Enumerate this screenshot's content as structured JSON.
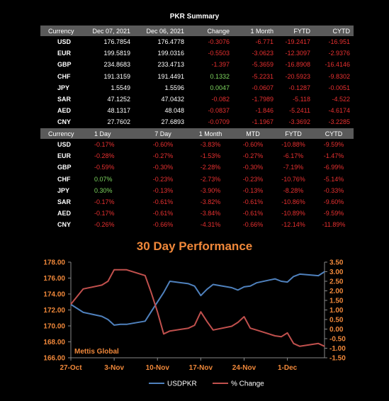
{
  "summary_title": "PKR Summary",
  "table1": {
    "headers": [
      "Currency",
      "Dec 07, 2021",
      "Dec 06, 2021",
      "Change",
      "1 Month",
      "FYTD",
      "CYTD"
    ],
    "rows": [
      [
        "USD",
        "176.7854",
        "176.4778",
        "-0.3076",
        "-6.771",
        "-19.2417",
        "-16.951"
      ],
      [
        "EUR",
        "199.5819",
        "199.0316",
        "-0.5503",
        "-3.0623",
        "-12.3097",
        "-2.9376"
      ],
      [
        "GBP",
        "234.8683",
        "233.4713",
        "-1.397",
        "-5.3659",
        "-16.8908",
        "-16.4146"
      ],
      [
        "CHF",
        "191.3159",
        "191.4491",
        "0.1332",
        "-5.2231",
        "-20.5923",
        "-9.8302"
      ],
      [
        "JPY",
        "1.5549",
        "1.5596",
        "0.0047",
        "-0.0607",
        "-0.1287",
        "-0.0051"
      ],
      [
        "SAR",
        "47.1252",
        "47.0432",
        "-0.082",
        "-1.7989",
        "-5.118",
        "-4.522"
      ],
      [
        "AED",
        "48.1317",
        "48.048",
        "-0.0837",
        "-1.846",
        "-5.2411",
        "-4.6174"
      ],
      [
        "CNY",
        "27.7602",
        "27.6893",
        "-0.0709",
        "-1.1967",
        "-3.3692",
        "-3.2285"
      ]
    ]
  },
  "table2": {
    "headers": [
      "Currency",
      "1 Day",
      "7 Day",
      "1 Month",
      "MTD",
      "FYTD",
      "CYTD"
    ],
    "rows": [
      [
        "USD",
        "-0.17%",
        "-0.60%",
        "-3.83%",
        "-0.60%",
        "-10.88%",
        "-9.59%"
      ],
      [
        "EUR",
        "-0.28%",
        "-0.27%",
        "-1.53%",
        "-0.27%",
        "-6.17%",
        "-1.47%"
      ],
      [
        "GBP",
        "-0.59%",
        "-0.30%",
        "-2.28%",
        "-0.30%",
        "-7.19%",
        "-6.99%"
      ],
      [
        "CHF",
        "0.07%",
        "-0.23%",
        "-2.73%",
        "-0.23%",
        "-10.76%",
        "-5.14%"
      ],
      [
        "JPY",
        "0.30%",
        "-0.13%",
        "-3.90%",
        "-0.13%",
        "-8.28%",
        "-0.33%"
      ],
      [
        "SAR",
        "-0.17%",
        "-0.61%",
        "-3.82%",
        "-0.61%",
        "-10.86%",
        "-9.60%"
      ],
      [
        "AED",
        "-0.17%",
        "-0.61%",
        "-3.84%",
        "-0.61%",
        "-10.89%",
        "-9.59%"
      ],
      [
        "CNY",
        "-0.26%",
        "-0.66%",
        "-4.31%",
        "-0.66%",
        "-12.14%",
        "-11.89%"
      ]
    ]
  },
  "colors": {
    "usdpkr": "#4f81bd",
    "pct_change": "#c0504d",
    "axis_label": "#f0883a",
    "positive": "#7fd860",
    "negative": "#e83030"
  },
  "chart_data": {
    "type": "line",
    "title": "30 Day Performance",
    "x_ticks": [
      "27-Oct",
      "3-Nov",
      "10-Nov",
      "17-Nov",
      "24-Nov",
      "1-Dec"
    ],
    "x_start": "2021-10-27",
    "series": [
      {
        "name": "USDPKR",
        "axis": "left",
        "x": [
          "2021-10-27",
          "2021-10-29",
          "2021-11-01",
          "2021-11-02",
          "2021-11-03",
          "2021-11-04",
          "2021-11-05",
          "2021-11-08",
          "2021-11-09",
          "2021-11-10",
          "2021-11-11",
          "2021-11-12",
          "2021-11-15",
          "2021-11-16",
          "2021-11-17",
          "2021-11-18",
          "2021-11-19",
          "2021-11-22",
          "2021-11-23",
          "2021-11-24",
          "2021-11-25",
          "2021-11-26",
          "2021-11-29",
          "2021-11-30",
          "2021-12-01",
          "2021-12-02",
          "2021-12-03",
          "2021-12-06",
          "2021-12-07"
        ],
        "values": [
          172.7,
          171.7,
          171.2,
          170.8,
          170.1,
          170.2,
          170.2,
          170.6,
          171.8,
          173.0,
          174.2,
          175.6,
          175.3,
          175.0,
          173.8,
          174.6,
          175.2,
          174.8,
          174.5,
          174.9,
          175.0,
          175.4,
          175.9,
          175.6,
          175.5,
          176.2,
          176.5,
          176.3,
          176.8
        ]
      },
      {
        "name": "% Change",
        "axis": "right",
        "x": [
          "2021-10-27",
          "2021-10-29",
          "2021-11-01",
          "2021-11-02",
          "2021-11-03",
          "2021-11-04",
          "2021-11-05",
          "2021-11-08",
          "2021-11-09",
          "2021-11-10",
          "2021-11-11",
          "2021-11-12",
          "2021-11-15",
          "2021-11-16",
          "2021-11-17",
          "2021-11-18",
          "2021-11-19",
          "2021-11-22",
          "2021-11-23",
          "2021-11-24",
          "2021-11-25",
          "2021-11-26",
          "2021-11-29",
          "2021-11-30",
          "2021-12-01",
          "2021-12-02",
          "2021-12-03",
          "2021-12-06",
          "2021-12-07"
        ],
        "values": [
          1.3,
          2.1,
          2.3,
          2.5,
          3.1,
          3.1,
          3.1,
          2.8,
          1.9,
          0.9,
          -0.25,
          -0.1,
          0.05,
          0.2,
          0.9,
          0.4,
          -0.05,
          0.15,
          0.35,
          0.65,
          0.05,
          -0.05,
          -0.35,
          -0.4,
          -0.2,
          -0.75,
          -0.9,
          -0.75,
          -0.9
        ]
      }
    ],
    "ylim_left": [
      166,
      178
    ],
    "yticks_left": [
      "166.00",
      "168.00",
      "170.00",
      "172.00",
      "174.00",
      "176.00",
      "178.00"
    ],
    "ylim_right": [
      -1.5,
      3.5
    ],
    "yticks_right": [
      "-1.50",
      "-1.00",
      "-0.50",
      "0.00",
      "0.50",
      "1.00",
      "1.50",
      "2.00",
      "2.50",
      "3.00",
      "3.50"
    ],
    "grid": false,
    "legend_position": "bottom",
    "annotation": "Mettis Global"
  }
}
